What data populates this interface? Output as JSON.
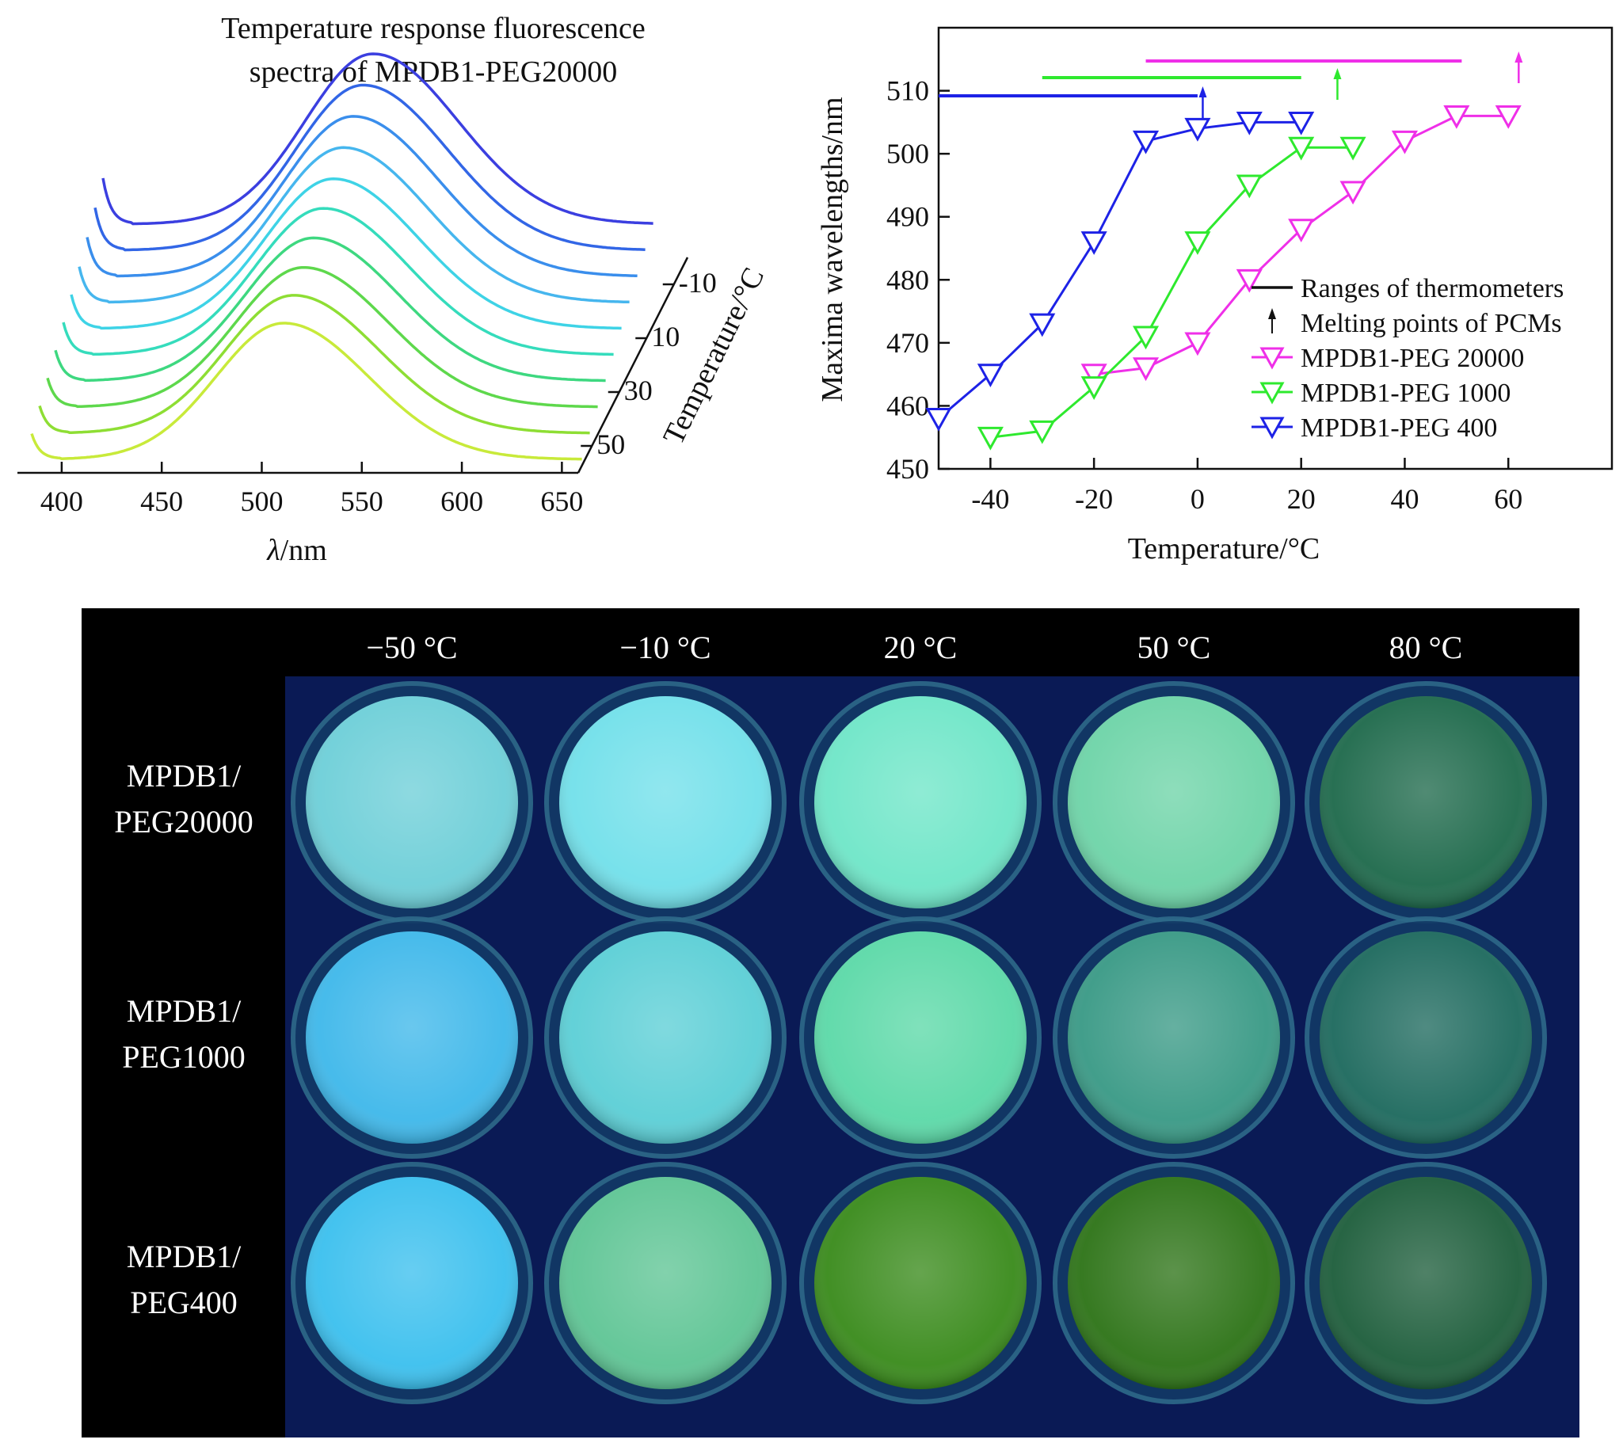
{
  "chart_data": [
    {
      "type": "line",
      "title_lines": [
        "Temperature response fluorescence",
        "spectra of MPDB1-PEG20000"
      ],
      "xlabel_italic": "λ",
      "xlabel_rest": "/nm",
      "xticks": [
        400,
        450,
        500,
        550,
        600,
        650
      ],
      "xlim": [
        385,
        655
      ],
      "zlabel": "Temperature/°C",
      "zticks": [
        -10,
        10,
        30,
        50
      ],
      "series": [
        {
          "temperature": -20,
          "color": "#3b3fe0",
          "peak_nm": 520,
          "peak": 1.0,
          "start_step": 0.27
        },
        {
          "temperature": -10,
          "color": "#3266e6",
          "peak_nm": 519,
          "peak": 0.97,
          "start_step": 0.25
        },
        {
          "temperature": 0,
          "color": "#3a8eec",
          "peak_nm": 518,
          "peak": 0.94,
          "start_step": 0.23
        },
        {
          "temperature": 10,
          "color": "#46b6ee",
          "peak_nm": 517,
          "peak": 0.91,
          "start_step": 0.21
        },
        {
          "temperature": 20,
          "color": "#3ed3e6",
          "peak_nm": 516,
          "peak": 0.88,
          "start_step": 0.2
        },
        {
          "temperature": 30,
          "color": "#35dcbc",
          "peak_nm": 515,
          "peak": 0.86,
          "start_step": 0.19
        },
        {
          "temperature": 40,
          "color": "#3ed880",
          "peak_nm": 514,
          "peak": 0.84,
          "start_step": 0.18
        },
        {
          "temperature": 50,
          "color": "#5ed84c",
          "peak_nm": 513,
          "peak": 0.82,
          "start_step": 0.17
        },
        {
          "temperature": 60,
          "color": "#8ede34",
          "peak_nm": 512,
          "peak": 0.81,
          "start_step": 0.16
        },
        {
          "temperature": 70,
          "color": "#c8ea3a",
          "peak_nm": 511,
          "peak": 0.8,
          "start_step": 0.15
        }
      ]
    },
    {
      "type": "line",
      "xlabel": "Temperature/°C",
      "ylabel": "Maxima wavelengths/nm",
      "xlim": [
        -50,
        80
      ],
      "ylim": [
        450,
        520
      ],
      "xticks": [
        -40,
        -20,
        0,
        20,
        40,
        60
      ],
      "yticks": [
        450,
        460,
        470,
        480,
        490,
        500,
        510
      ],
      "series": [
        {
          "name": "MPDB1-PEG 20000",
          "color": "#ef2fe8",
          "marker": "triangle-down-open",
          "x": [
            -20,
            -10,
            0,
            10,
            20,
            30,
            40,
            50,
            60
          ],
          "y": [
            465,
            466,
            470,
            480,
            488,
            494,
            502,
            506,
            506
          ]
        },
        {
          "name": "MPDB1-PEG 1000",
          "color": "#2ee92e",
          "marker": "triangle-down-open",
          "x": [
            -40,
            -30,
            -20,
            -10,
            0,
            10,
            20,
            30
          ],
          "y": [
            455,
            456,
            463,
            471,
            486,
            495,
            501,
            501
          ]
        },
        {
          "name": "MPDB1-PEG 400",
          "color": "#1d22e6",
          "marker": "triangle-down-open",
          "x": [
            -50,
            -40,
            -30,
            -20,
            -10,
            0,
            10,
            20
          ],
          "y": [
            458,
            465,
            473,
            486,
            502,
            504,
            505,
            505
          ]
        }
      ],
      "ranges": [
        {
          "series": "MPDB1-PEG 20000",
          "color": "#ef2fe8",
          "from": -10,
          "to": 51,
          "melting_point": 62
        },
        {
          "series": "MPDB1-PEG 1000",
          "color": "#2ee92e",
          "from": -30,
          "to": 20,
          "melting_point": 27
        },
        {
          "series": "MPDB1-PEG 400",
          "color": "#1d22e6",
          "from": -50,
          "to": 0,
          "melting_point": 1
        }
      ],
      "legend_position": "lower-right",
      "legend": [
        "Ranges of thermometers",
        "Melting points of PCMs",
        "MPDB1-PEG 20000",
        "MPDB1-PEG 1000",
        "MPDB1-PEG 400"
      ]
    }
  ],
  "photo_grid": {
    "columns": [
      "−50 °C",
      "−10 °C",
      "20 °C",
      "50 °C",
      "80 °C"
    ],
    "rows": [
      {
        "label_lines": [
          "MPDB1/",
          "PEG20000"
        ],
        "colors": [
          "#6ecfd8",
          "#72e0ea",
          "#6fe6c8",
          "#6ed4a8",
          "#1f6a4c"
        ]
      },
      {
        "label_lines": [
          "MPDB1/",
          "PEG1000"
        ],
        "colors": [
          "#3fb8ea",
          "#5ccfd6",
          "#5cd9a8",
          "#3a9a86",
          "#1e6a5e"
        ]
      },
      {
        "label_lines": [
          "MPDB1/",
          "PEG400"
        ],
        "colors": [
          "#3cc0ee",
          "#5fc595",
          "#3a8b1c",
          "#2e7418",
          "#1e5e3c"
        ]
      }
    ]
  }
}
